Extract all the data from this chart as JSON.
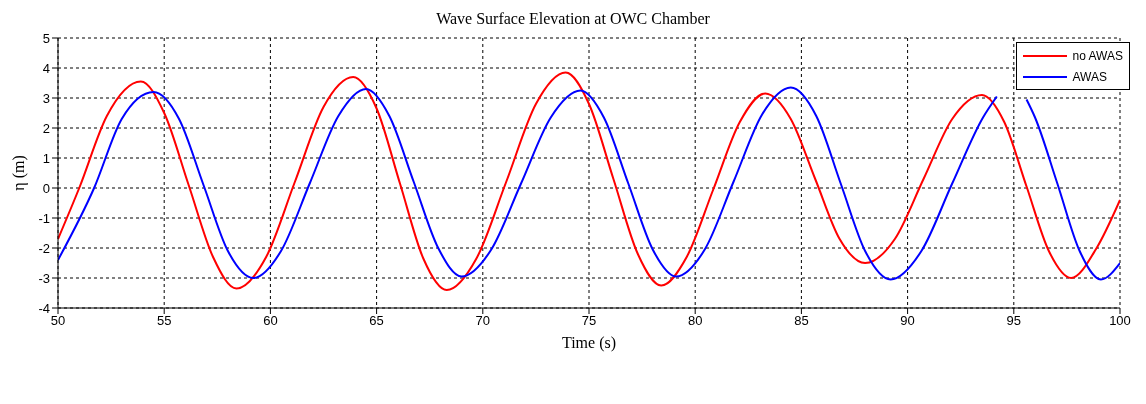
{
  "chart_data": {
    "type": "line",
    "title": "Wave Surface Elevation at OWC Chamber",
    "xlabel": "Time (s)",
    "ylabel": "η (m)",
    "xlim": [
      50,
      100
    ],
    "xticks": [
      50,
      55,
      60,
      65,
      70,
      75,
      80,
      85,
      90,
      95,
      100
    ],
    "ylim": [
      -4,
      5
    ],
    "yticks": [
      -4,
      -3,
      -2,
      -1,
      0,
      1,
      2,
      3,
      4,
      5
    ],
    "grid": true,
    "legend": "top right",
    "marker": "none",
    "line_style": "solid",
    "series": [
      {
        "name": "no AWAS",
        "color": "#ff0000",
        "x": [
          50,
          51.0,
          52.3,
          53.9,
          55.0,
          56.15,
          57.3,
          58.4,
          59.8,
          61.15,
          62.5,
          63.9,
          65.0,
          66.1,
          67.2,
          68.3,
          69.7,
          71.1,
          72.5,
          73.9,
          75.0,
          76.15,
          77.3,
          78.4,
          79.6,
          80.85,
          82.1,
          83.3,
          84.5,
          85.65,
          86.8,
          88.0,
          89.4,
          90.75,
          92.1,
          93.5,
          94.55,
          95.6,
          96.65,
          97.7,
          98.9,
          100
        ],
        "values": [
          -1.7,
          0,
          2.4,
          3.55,
          2.5,
          0.1,
          -2.3,
          -3.35,
          -2.3,
          0.2,
          2.7,
          3.7,
          2.65,
          0.15,
          -2.35,
          -3.4,
          -2.35,
          0.2,
          2.8,
          3.85,
          2.8,
          0.3,
          -2.2,
          -3.25,
          -2.3,
          -0.05,
          2.2,
          3.15,
          2.3,
          0.3,
          -1.7,
          -2.5,
          -1.7,
          0.3,
          2.3,
          3.1,
          2.2,
          0.05,
          -2.1,
          -3.0,
          -2.0,
          -0.4
        ]
      },
      {
        "name": "AWAS",
        "color": "#0000ff",
        "x": [
          50,
          51.7,
          53.0,
          54.5,
          55.7,
          56.85,
          58.0,
          59.2,
          60.5,
          61.85,
          63.2,
          64.5,
          65.6,
          66.75,
          67.9,
          69.0,
          70.4,
          71.8,
          73.2,
          74.6,
          75.7,
          76.85,
          78.0,
          79.1,
          80.45,
          81.8,
          83.15,
          84.5,
          85.7,
          86.85,
          88.0,
          89.2,
          90.65,
          92.1,
          93.55,
          94.2,
          95.0,
          95.6,
          96.0,
          97.05,
          98.1,
          99.1,
          100
        ],
        "values": [
          -2.4,
          0,
          2.3,
          3.2,
          2.3,
          0.1,
          -2.1,
          -3.0,
          -2.1,
          0.15,
          2.4,
          3.3,
          2.4,
          0.2,
          -2.0,
          -2.95,
          -2.05,
          0.15,
          2.35,
          3.25,
          2.35,
          0.15,
          -2.05,
          -2.95,
          -2.05,
          0.2,
          2.45,
          3.35,
          2.4,
          0.15,
          -2.1,
          -3.05,
          -2.1,
          0.15,
          2.35,
          3.05,
          null,
          2.95,
          2.35,
          0.15,
          -2.1,
          -3.05,
          -2.5
        ]
      }
    ]
  }
}
